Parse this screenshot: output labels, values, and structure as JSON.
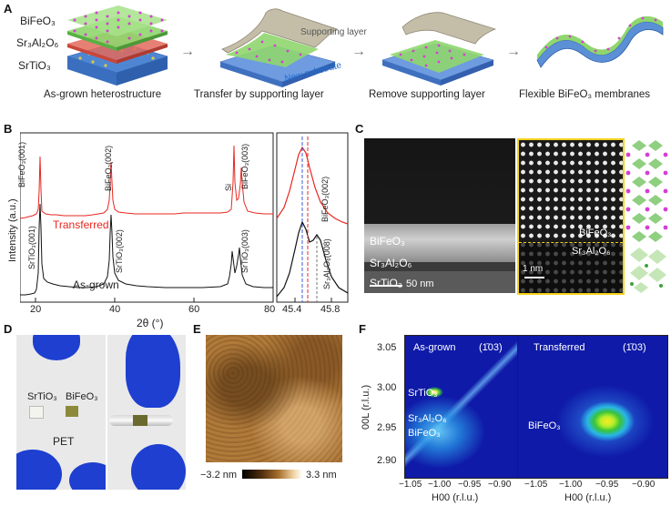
{
  "panel_a": {
    "label": "A",
    "layers": {
      "top": "BiFeO₃",
      "mid": "Sr₃Al₂O₆",
      "bottom": "SrTiO₃"
    },
    "steps": [
      "As-grown heterostructure",
      "Transfer by supporting layer",
      "Remove supporting layer",
      "Flexible BiFeO₃ membranes"
    ],
    "supporting_layer": "Supporting layer",
    "new_substrate": "New substrate",
    "colors": {
      "substrate": "#5b8fd6",
      "supporting": "#bdb7a4",
      "atoms_magenta": "#d43fd4",
      "atoms_green": "#6ad14b"
    }
  },
  "panel_b": {
    "label": "B",
    "ylabel": "Intensity (a.u.)",
    "xlabel": "2θ (°)",
    "xticks": [
      "20",
      "40",
      "60",
      "80"
    ],
    "inset_xticks": [
      "45.4",
      "45.8"
    ],
    "series_transferred": "Transferred",
    "series_asgrown": "As-grown",
    "peaks_top": [
      "BiFeO₃(001)",
      "BiFeO₃(002)",
      "Si",
      "BiFeO₃(003)"
    ],
    "peaks_bottom": [
      "SrTiO₃(001)",
      "SrTiO₃(002)",
      "SrTiO₃(003)"
    ],
    "inset_top": "BiFeO₃(002)",
    "inset_bottom": "Sr₃Al₂O₆(008)",
    "colors": {
      "transferred": "#e8261f",
      "asgrown": "#111111",
      "blue_line": "#3b5bd6"
    }
  },
  "panel_c": {
    "label": "C",
    "layer1": "BiFeO₃",
    "layer2": "Sr₃Al₂O₆",
    "layer3": "SrTiO₃",
    "scale_left": "50 nm",
    "zoom1": "BiFeO₃",
    "zoom2": "Sr₃Al₂O₆",
    "scale_right": "1 nm",
    "colors": {
      "frame": "#f3d21b"
    }
  },
  "panel_d": {
    "label": "D",
    "sample1": "SrTiO₃",
    "sample2": "BiFeO₃",
    "pet": "PET",
    "colors": {
      "glove": "#1e3fd0"
    }
  },
  "panel_e": {
    "label": "E",
    "cbar_min": "−3.2 nm",
    "cbar_max": "3.3 nm"
  },
  "panel_f": {
    "label": "F",
    "ylabel": "00L (r.l.u.)",
    "xlabel": "H00 (r.l.u.)",
    "yticks": [
      "3.05",
      "3.00",
      "2.95",
      "2.90"
    ],
    "xticks": [
      "−1.05",
      "−1.00",
      "−0.95",
      "−0.90"
    ],
    "left_title": "As-grown",
    "left_index": "(1̄03)",
    "right_title": "Transferred",
    "right_index": "(1̄03)",
    "left_label1": "SrTiO₃",
    "left_label2": "Sr₃Al₂O₆",
    "left_label3": "BiFeO₃",
    "right_label": "BiFeO₃"
  }
}
